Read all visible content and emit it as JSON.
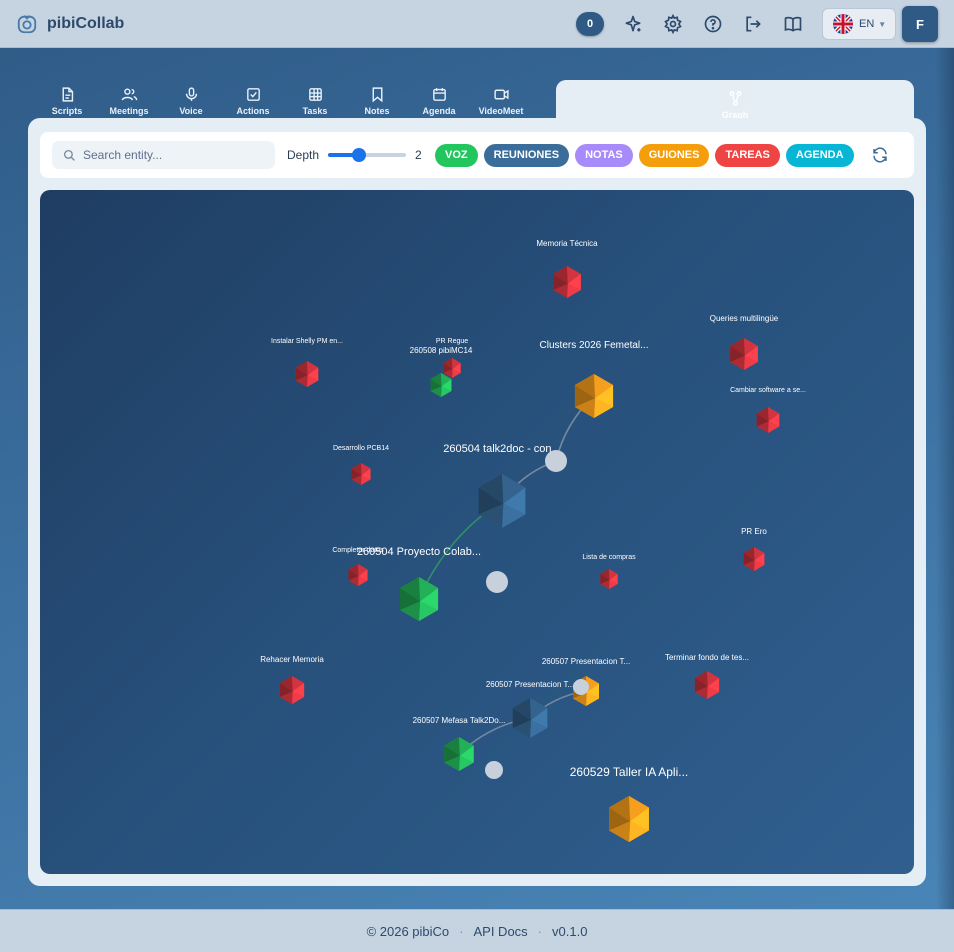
{
  "app": {
    "name": "pibiCollab"
  },
  "header": {
    "notification_count": "0",
    "language": {
      "code": "EN"
    },
    "user_initial": "F"
  },
  "tabs": [
    {
      "label": "Scripts",
      "icon": "script-icon"
    },
    {
      "label": "Meetings",
      "icon": "users-icon"
    },
    {
      "label": "Voice",
      "icon": "mic-icon"
    },
    {
      "label": "Actions",
      "icon": "checkbox-icon"
    },
    {
      "label": "Tasks",
      "icon": "table-icon"
    },
    {
      "label": "Notes",
      "icon": "bookmark-icon"
    },
    {
      "label": "Agenda",
      "icon": "calendar-icon"
    },
    {
      "label": "VideoMeet",
      "icon": "video-icon"
    },
    {
      "label": "Graph",
      "icon": "graph-icon",
      "active": true
    }
  ],
  "toolbar": {
    "search_placeholder": "Search entity...",
    "depth_label": "Depth",
    "depth_value": "2",
    "depth_max": 4,
    "filters": [
      {
        "label": "VOZ",
        "color": "#22c55e"
      },
      {
        "label": "REUNIONES",
        "color": "#3b6d9a"
      },
      {
        "label": "NOTAS",
        "color": "#a78bfa"
      },
      {
        "label": "GUIONES",
        "color": "#f59e0b"
      },
      {
        "label": "TAREAS",
        "color": "#ef4444"
      },
      {
        "label": "AGENDA",
        "color": "#06b6d4"
      }
    ]
  },
  "graph": {
    "colors": {
      "red": "#c0303a",
      "orange": "#e0901a",
      "green": "#1fa050",
      "blue": "#2f5a80",
      "gray": "#c8d0dc"
    },
    "nodes": [
      {
        "label": "Memoria Técnica",
        "type": "red"
      },
      {
        "label": "Queries multilingüe",
        "type": "red"
      },
      {
        "label": "Instalar Shelly PM en...",
        "type": "red"
      },
      {
        "label": "PR Regue",
        "type": "red"
      },
      {
        "label": "260508 pibiMC14",
        "type": "green"
      },
      {
        "label": "Clusters 2026 Femetal...",
        "type": "orange"
      },
      {
        "label": "Cambiar software a se...",
        "type": "red"
      },
      {
        "label": "Desarrollo PCB14",
        "type": "red"
      },
      {
        "label": "260504 talk2doc - con...",
        "type": "blue"
      },
      {
        "label": "",
        "type": "gray"
      },
      {
        "label": "Completar datos",
        "type": "red"
      },
      {
        "label": "260504 Proyecto Colab...",
        "type": "green"
      },
      {
        "label": "",
        "type": "gray"
      },
      {
        "label": "Lista de compras",
        "type": "red"
      },
      {
        "label": "PR Ero",
        "type": "red"
      },
      {
        "label": "Rehacer Memoria",
        "type": "red"
      },
      {
        "label": "260507 Presentacion T...",
        "type": "orange"
      },
      {
        "label": "Terminar fondo de tes...",
        "type": "red"
      },
      {
        "label": "260507 Presentacion T...",
        "type": "blue"
      },
      {
        "label": "",
        "type": "gray"
      },
      {
        "label": "260507 Mefasa Talk2Do...",
        "type": "green"
      },
      {
        "label": "",
        "type": "gray"
      },
      {
        "label": "260529 Taller IA Apli...",
        "type": "orange"
      }
    ]
  },
  "footer": {
    "copyright": "© 2026 pibiCo",
    "api_docs": "API Docs",
    "version": "v0.1.0"
  }
}
